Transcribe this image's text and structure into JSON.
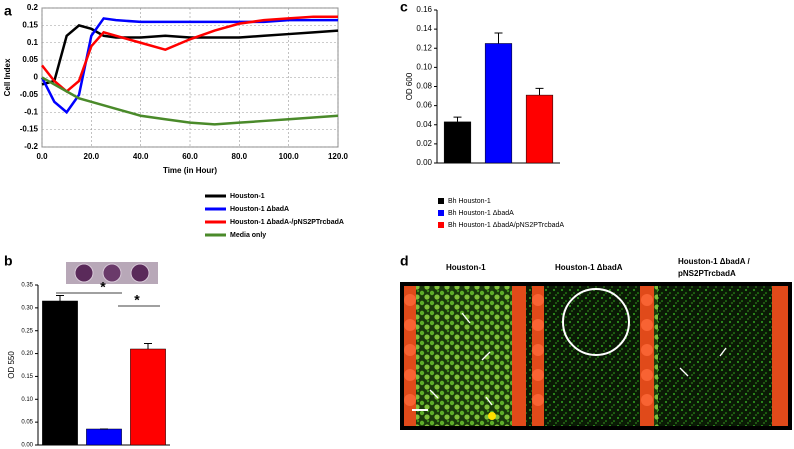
{
  "chart_data": [
    {
      "type": "line",
      "panel": "a",
      "xlabel": "Time (in Hour)",
      "ylabel": "Cell Index",
      "x": [
        0,
        5,
        10,
        15,
        20,
        25,
        30,
        40,
        50,
        60,
        70,
        80,
        90,
        100,
        110,
        120
      ],
      "series": [
        {
          "name": "Houston-1",
          "color": "#000000",
          "values": [
            -0.02,
            -0.01,
            0.12,
            0.15,
            0.14,
            0.12,
            0.115,
            0.115,
            0.12,
            0.115,
            0.115,
            0.115,
            0.12,
            0.125,
            0.13,
            0.135
          ]
        },
        {
          "name": "Houston-1 ΔbadA",
          "color": "#0000ff",
          "values": [
            0.0,
            -0.07,
            -0.1,
            -0.05,
            0.12,
            0.17,
            0.165,
            0.16,
            0.16,
            0.16,
            0.16,
            0.16,
            0.16,
            0.165,
            0.165,
            0.165
          ]
        },
        {
          "name": "Houston-1 ΔbadA-/pNS2PTrcbadA",
          "color": "#ff0000",
          "values": [
            0.035,
            -0.01,
            -0.04,
            -0.01,
            0.09,
            0.13,
            0.12,
            0.1,
            0.08,
            0.11,
            0.135,
            0.155,
            0.165,
            0.17,
            0.175,
            0.175
          ]
        },
        {
          "name": "Media only",
          "color": "#4a8a2a",
          "values": [
            0.0,
            -0.02,
            -0.04,
            -0.06,
            -0.07,
            -0.08,
            -0.09,
            -0.11,
            -0.12,
            -0.13,
            -0.135,
            -0.13,
            -0.125,
            -0.12,
            -0.115,
            -0.11
          ]
        }
      ],
      "xlim": [
        0,
        120
      ],
      "xticks": [
        {
          "value": 0,
          "label": "0.0"
        },
        {
          "value": 20,
          "label": "20.0"
        },
        {
          "value": 40,
          "label": "40.0"
        },
        {
          "value": 60,
          "label": "60.0"
        },
        {
          "value": 80,
          "label": "80.0"
        },
        {
          "value": 100,
          "label": "100.0"
        },
        {
          "value": 120,
          "label": "120.0"
        }
      ],
      "ylim": [
        -0.2,
        0.2
      ],
      "yticks": [
        -0.2,
        -0.15,
        -0.1,
        -0.05,
        0,
        0.05,
        0.1,
        0.15,
        0.2
      ],
      "grid": true
    },
    {
      "type": "bar",
      "panel": "b",
      "ylabel": "OD 550",
      "categories": [
        null,
        null,
        null
      ],
      "values": [
        0.315,
        0.035,
        0.21
      ],
      "errors": [
        0.012,
        0.0,
        0.012
      ],
      "colors": [
        "#000000",
        "#0000ff",
        "#ff0000"
      ],
      "ylim": [
        0,
        0.35
      ],
      "yticks": [
        {
          "value": 0,
          "label": "0.00"
        },
        0.05,
        {
          "value": 0.1,
          "label": "0.10"
        },
        0.15,
        {
          "value": 0.2,
          "label": "0.20"
        },
        0.25,
        {
          "value": 0.3,
          "label": "0.30"
        },
        0.35
      ],
      "annotations": [
        "*",
        "*"
      ]
    },
    {
      "type": "bar",
      "panel": "c",
      "ylabel": "OD 600",
      "categories": [
        null,
        null,
        null
      ],
      "values": [
        0.043,
        0.125,
        0.071
      ],
      "errors": [
        0.005,
        0.011,
        0.007
      ],
      "colors": [
        "#000000",
        "#0000ff",
        "#ff0000"
      ],
      "legend": [
        "Bh Houston-1",
        "Bh Houston-1 ΔbadA",
        "Bh Houston-1 ΔbadA/pNS2PTrcbadA"
      ],
      "ylim": [
        0,
        0.16
      ],
      "yticks": [
        {
          "value": 0,
          "label": "0.00"
        },
        {
          "value": 0.02,
          "label": "0.02"
        },
        {
          "value": 0.04,
          "label": "0.04"
        },
        {
          "value": 0.06,
          "label": "0.06"
        },
        {
          "value": 0.08,
          "label": "0.08"
        },
        {
          "value": 0.1,
          "label": "0.10"
        },
        {
          "value": 0.12,
          "label": "0.12"
        },
        {
          "value": 0.14,
          "label": "0.14"
        },
        {
          "value": 0.16,
          "label": "0.16"
        }
      ]
    }
  ],
  "image_panel": {
    "panel": "d",
    "titles": [
      "Houston-1",
      "Houston-1 ΔbadA",
      "Houston-1 ΔbadA /",
      "pNS2PTrcbadA"
    ]
  }
}
